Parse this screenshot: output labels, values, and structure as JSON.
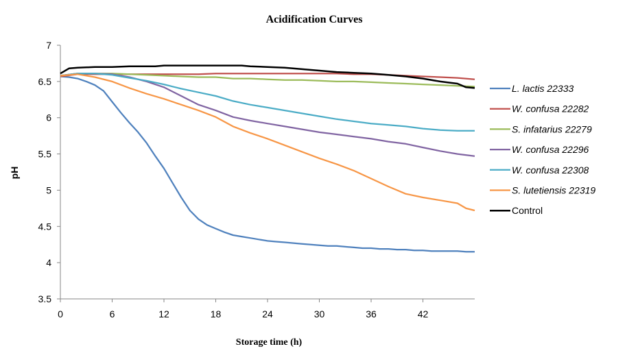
{
  "chart_data": {
    "type": "line",
    "title": "Acidification Curves",
    "xlabel": "Storage time (h)",
    "ylabel": "pH",
    "xlim": [
      0,
      48
    ],
    "ylim": [
      3.5,
      7
    ],
    "x_ticks": [
      "0",
      "6",
      "12",
      "18",
      "24",
      "30",
      "36",
      "42"
    ],
    "y_ticks": [
      "3.5",
      "4",
      "4.5",
      "5",
      "5.5",
      "6",
      "6.5",
      "7"
    ],
    "grid": false,
    "legend_position": "right",
    "series": [
      {
        "name": "L. lactis 22333",
        "italic": true,
        "color": "#4f81bd",
        "x": [
          0,
          1,
          2,
          3,
          4,
          5,
          6,
          7,
          8,
          9,
          10,
          11,
          12,
          13,
          14,
          15,
          16,
          17,
          18,
          19,
          20,
          21,
          22,
          23,
          24,
          25,
          26,
          27,
          28,
          29,
          30,
          31,
          32,
          33,
          34,
          35,
          36,
          37,
          38,
          39,
          40,
          41,
          42,
          43,
          44,
          45,
          46,
          47,
          48
        ],
        "y": [
          6.57,
          6.56,
          6.54,
          6.5,
          6.45,
          6.37,
          6.22,
          6.07,
          5.93,
          5.8,
          5.65,
          5.47,
          5.3,
          5.1,
          4.9,
          4.72,
          4.6,
          4.52,
          4.47,
          4.42,
          4.38,
          4.36,
          4.34,
          4.32,
          4.3,
          4.29,
          4.28,
          4.27,
          4.26,
          4.25,
          4.24,
          4.23,
          4.23,
          4.22,
          4.21,
          4.2,
          4.2,
          4.19,
          4.19,
          4.18,
          4.18,
          4.17,
          4.17,
          4.16,
          4.16,
          4.16,
          4.16,
          4.15,
          4.15
        ]
      },
      {
        "name": "W. confusa 22282",
        "italic": true,
        "color": "#c0504d",
        "x": [
          0,
          2,
          4,
          6,
          8,
          10,
          12,
          14,
          16,
          18,
          20,
          22,
          24,
          26,
          28,
          30,
          32,
          34,
          36,
          38,
          40,
          42,
          44,
          46,
          48
        ],
        "y": [
          6.57,
          6.6,
          6.6,
          6.6,
          6.6,
          6.6,
          6.6,
          6.6,
          6.6,
          6.61,
          6.61,
          6.61,
          6.61,
          6.61,
          6.61,
          6.61,
          6.61,
          6.6,
          6.6,
          6.59,
          6.58,
          6.57,
          6.56,
          6.55,
          6.53
        ]
      },
      {
        "name": "S. infatarius 22279",
        "italic": true,
        "color": "#9bbb59",
        "x": [
          0,
          2,
          4,
          6,
          8,
          10,
          12,
          14,
          16,
          18,
          20,
          22,
          24,
          26,
          28,
          30,
          32,
          34,
          36,
          38,
          40,
          42,
          44,
          46,
          48
        ],
        "y": [
          6.58,
          6.61,
          6.61,
          6.61,
          6.6,
          6.59,
          6.58,
          6.57,
          6.56,
          6.56,
          6.54,
          6.54,
          6.53,
          6.52,
          6.52,
          6.51,
          6.5,
          6.5,
          6.49,
          6.48,
          6.47,
          6.46,
          6.45,
          6.44,
          6.43
        ]
      },
      {
        "name": "W. confusa 22296",
        "italic": true,
        "color": "#8064a2",
        "x": [
          0,
          2,
          4,
          6,
          8,
          10,
          12,
          14,
          16,
          18,
          20,
          22,
          24,
          26,
          28,
          30,
          32,
          34,
          36,
          38,
          40,
          42,
          44,
          46,
          48
        ],
        "y": [
          6.58,
          6.61,
          6.61,
          6.6,
          6.56,
          6.5,
          6.42,
          6.3,
          6.18,
          6.1,
          6.01,
          5.96,
          5.92,
          5.88,
          5.84,
          5.8,
          5.77,
          5.74,
          5.71,
          5.67,
          5.64,
          5.59,
          5.54,
          5.5,
          5.47
        ]
      },
      {
        "name": "W. confusa 22308",
        "italic": true,
        "color": "#4bacc6",
        "x": [
          0,
          2,
          4,
          6,
          8,
          10,
          12,
          14,
          16,
          18,
          20,
          22,
          24,
          26,
          28,
          30,
          32,
          34,
          36,
          38,
          40,
          42,
          44,
          46,
          48
        ],
        "y": [
          6.58,
          6.61,
          6.61,
          6.59,
          6.55,
          6.51,
          6.46,
          6.4,
          6.35,
          6.3,
          6.23,
          6.18,
          6.14,
          6.1,
          6.06,
          6.02,
          5.98,
          5.95,
          5.92,
          5.9,
          5.88,
          5.85,
          5.83,
          5.82,
          5.82
        ]
      },
      {
        "name": "S. lutetiensis 22319",
        "italic": true,
        "color": "#f79646",
        "x": [
          0,
          2,
          4,
          6,
          8,
          10,
          12,
          14,
          16,
          18,
          20,
          22,
          24,
          26,
          28,
          30,
          32,
          34,
          36,
          38,
          40,
          42,
          44,
          46,
          47,
          48
        ],
        "y": [
          6.58,
          6.6,
          6.56,
          6.5,
          6.41,
          6.33,
          6.26,
          6.18,
          6.1,
          6.01,
          5.88,
          5.79,
          5.71,
          5.62,
          5.53,
          5.44,
          5.36,
          5.27,
          5.16,
          5.05,
          4.95,
          4.9,
          4.86,
          4.82,
          4.75,
          4.72
        ]
      },
      {
        "name": "Control",
        "italic": false,
        "color": "#000000",
        "x": [
          0,
          1,
          2,
          4,
          6,
          8,
          10,
          11,
          12,
          14,
          16,
          18,
          20,
          21,
          22,
          24,
          26,
          28,
          30,
          32,
          34,
          36,
          38,
          40,
          42,
          44,
          46,
          47,
          48
        ],
        "y": [
          6.61,
          6.68,
          6.69,
          6.7,
          6.7,
          6.71,
          6.71,
          6.71,
          6.72,
          6.72,
          6.72,
          6.72,
          6.72,
          6.72,
          6.71,
          6.7,
          6.69,
          6.67,
          6.65,
          6.63,
          6.62,
          6.61,
          6.59,
          6.57,
          6.54,
          6.5,
          6.47,
          6.42,
          6.41
        ]
      }
    ]
  }
}
